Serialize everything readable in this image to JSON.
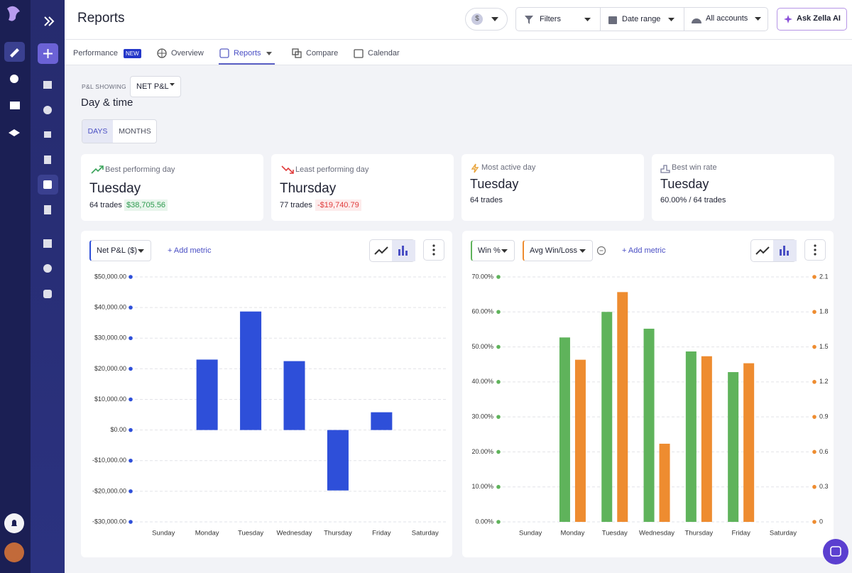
{
  "header": {
    "title": "Reports",
    "currency": "$",
    "filters": "Filters",
    "date_range": "Date range",
    "accounts": "All accounts",
    "ask": "Ask Zella AI"
  },
  "tabs": {
    "performance": "Performance",
    "badge": "NEW",
    "overview": "Overview",
    "reports": "Reports",
    "compare": "Compare",
    "calendar": "Calendar"
  },
  "controls": {
    "pl_label": "P&L SHOWING",
    "pl_value": "NET P&L",
    "section": "Day & time",
    "days": "DAYS",
    "months": "MONTHS"
  },
  "cards": [
    {
      "label": "Best performing day",
      "day": "Tuesday",
      "trades": "64 trades",
      "amount": "$38,705.56"
    },
    {
      "label": "Least performing day",
      "day": "Thursday",
      "trades": "77 trades",
      "amount": "-$19,740.79"
    },
    {
      "label": "Most active day",
      "day": "Tuesday",
      "trades": "64 trades"
    },
    {
      "label": "Best win rate",
      "day": "Tuesday",
      "trades": "60.00% / 64 trades"
    }
  ],
  "chart_data": [
    {
      "type": "bar",
      "add_metric": "+ Add metric",
      "categories": [
        "Sunday",
        "Monday",
        "Tuesday",
        "Wednesday",
        "Thursday",
        "Friday",
        "Saturday"
      ],
      "series": [
        {
          "name": "Net P&L ($)",
          "color": "#2e4fd9",
          "values": [
            null,
            23000,
            38705.56,
            22500,
            -19740.79,
            5800,
            null
          ]
        }
      ],
      "ylim": [
        -30000,
        50000
      ],
      "yticks": [
        {
          "value": -30000,
          "label": "-$30,000.00"
        },
        {
          "value": -20000,
          "label": "-$20,000.00"
        },
        {
          "value": -10000,
          "label": "-$10,000.00"
        },
        {
          "value": 0,
          "label": "$0.00"
        },
        {
          "value": 10000,
          "label": "$10,000.00"
        },
        {
          "value": 20000,
          "label": "$20,000.00"
        },
        {
          "value": 30000,
          "label": "$30,000.00"
        },
        {
          "value": 40000,
          "label": "$40,000.00"
        },
        {
          "value": 50000,
          "label": "$50,000.00"
        }
      ],
      "grid": true
    },
    {
      "type": "bar",
      "add_metric": "+ Add metric",
      "categories": [
        "Sunday",
        "Monday",
        "Tuesday",
        "Wednesday",
        "Thursday",
        "Friday",
        "Saturday"
      ],
      "series": [
        {
          "name": "Win %",
          "color": "#5fb35b",
          "values": [
            null,
            52.7,
            60,
            55.2,
            48.7,
            42.8,
            null
          ]
        },
        {
          "name": "Avg Win/Loss",
          "color": "#ee8c30",
          "axis": "y2",
          "values": [
            null,
            1.39,
            1.97,
            0.67,
            1.42,
            1.36,
            null
          ]
        }
      ],
      "ylim": [
        0,
        70
      ],
      "yticks": [
        {
          "value": 0,
          "label": "0.00%"
        },
        {
          "value": 10,
          "label": "10.00%"
        },
        {
          "value": 20,
          "label": "20.00%"
        },
        {
          "value": 30,
          "label": "30.00%"
        },
        {
          "value": 40,
          "label": "40.00%"
        },
        {
          "value": 50,
          "label": "50.00%"
        },
        {
          "value": 60,
          "label": "60.00%"
        },
        {
          "value": 70,
          "label": "70.00%"
        }
      ],
      "y2lim": [
        0,
        2.1
      ],
      "y2ticks": [
        0,
        0.3,
        0.6,
        0.9,
        1.2,
        1.5,
        1.8,
        2.1
      ],
      "grid": true
    }
  ]
}
